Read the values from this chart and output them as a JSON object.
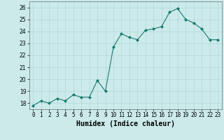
{
  "x": [
    0,
    1,
    2,
    3,
    4,
    5,
    6,
    7,
    8,
    9,
    10,
    11,
    12,
    13,
    14,
    15,
    16,
    17,
    18,
    19,
    20,
    21,
    22,
    23
  ],
  "y": [
    17.8,
    18.2,
    18.0,
    18.4,
    18.2,
    18.7,
    18.5,
    18.5,
    19.9,
    19.0,
    22.7,
    23.8,
    23.5,
    23.3,
    24.1,
    24.2,
    24.4,
    25.6,
    25.9,
    25.0,
    24.7,
    24.2,
    23.3,
    23.3
  ],
  "xlabel": "Humidex (Indice chaleur)",
  "ylim": [
    17.5,
    26.5
  ],
  "xlim": [
    -0.5,
    23.5
  ],
  "yticks": [
    18,
    19,
    20,
    21,
    22,
    23,
    24,
    25,
    26
  ],
  "xtick_labels": [
    "0",
    "1",
    "2",
    "3",
    "4",
    "5",
    "6",
    "7",
    "8",
    "9",
    "10",
    "11",
    "12",
    "13",
    "14",
    "15",
    "16",
    "17",
    "18",
    "19",
    "20",
    "21",
    "22",
    "23"
  ],
  "line_color": "#1a7a6e",
  "bg_color": "#cceaea",
  "grid_color": "#b0d8d8",
  "marker": "D",
  "marker_size": 2.0,
  "linewidth": 0.8,
  "tick_fontsize": 5.5,
  "xlabel_fontsize": 7.0
}
